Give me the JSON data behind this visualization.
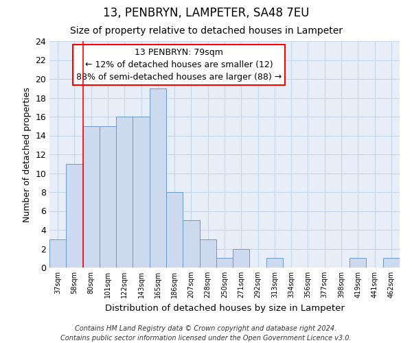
{
  "title": "13, PENBRYN, LAMPETER, SA48 7EU",
  "subtitle": "Size of property relative to detached houses in Lampeter",
  "xlabel": "Distribution of detached houses by size in Lampeter",
  "ylabel": "Number of detached properties",
  "bar_values": [
    3,
    11,
    15,
    15,
    16,
    16,
    19,
    8,
    5,
    3,
    1,
    2,
    0,
    1,
    0,
    0,
    0,
    0,
    1,
    0,
    1
  ],
  "bin_labels": [
    "37sqm",
    "58sqm",
    "80sqm",
    "101sqm",
    "122sqm",
    "143sqm",
    "165sqm",
    "186sqm",
    "207sqm",
    "228sqm",
    "250sqm",
    "271sqm",
    "292sqm",
    "313sqm",
    "334sqm",
    "356sqm",
    "377sqm",
    "398sqm",
    "419sqm",
    "441sqm",
    "462sqm"
  ],
  "bar_color": "#ccd9ee",
  "bar_edge_color": "#6899cc",
  "grid_color": "#c8d4e8",
  "background_color": "#e8eef8",
  "annotation_text_line1": "13 PENBRYN: 79sqm",
  "annotation_text_line2": "← 12% of detached houses are smaller (12)",
  "annotation_text_line3": "88% of semi-detached houses are larger (88) →",
  "annotation_box_color": "white",
  "annotation_box_edge_color": "red",
  "red_line_bin_index": 2,
  "ylim": [
    0,
    24
  ],
  "yticks": [
    0,
    2,
    4,
    6,
    8,
    10,
    12,
    14,
    16,
    18,
    20,
    22,
    24
  ],
  "footnote": "Contains HM Land Registry data © Crown copyright and database right 2024.\nContains public sector information licensed under the Open Government Licence v3.0.",
  "title_fontsize": 12,
  "subtitle_fontsize": 10,
  "xlabel_fontsize": 9.5,
  "ylabel_fontsize": 9,
  "annot_fontsize": 9,
  "footnote_fontsize": 7
}
